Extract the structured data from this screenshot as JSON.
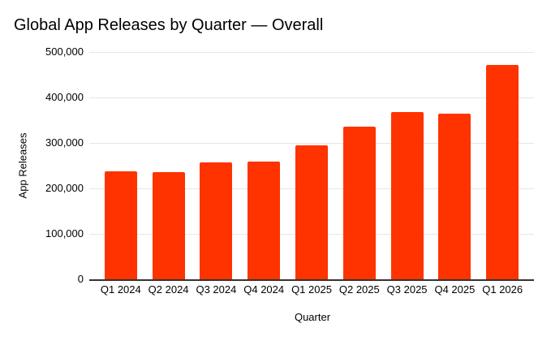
{
  "chart_data": {
    "type": "bar",
    "title": "Global App Releases by Quarter — Overall",
    "categories": [
      "Q1 2024",
      "Q2 2024",
      "Q3 2024",
      "Q4 2024",
      "Q1 2025",
      "Q2 2025",
      "Q3 2025",
      "Q4 2025",
      "Q1 2026"
    ],
    "values": [
      238000,
      236000,
      257000,
      259000,
      294000,
      336000,
      368000,
      364000,
      471000
    ],
    "xlabel": "Quarter",
    "ylabel": "App Releases",
    "ylim": [
      0,
      500000
    ],
    "ytick_values": [
      0,
      100000,
      200000,
      300000,
      400000,
      500000
    ],
    "ytick_labels": [
      "0",
      "100,000",
      "200,000",
      "300,000",
      "400,000",
      "500,000"
    ],
    "grid": true,
    "legend": "none",
    "bar_color": "#FF3300",
    "gridline_color": "#E6E6E6",
    "axis_line_color": "#333333",
    "text_color": "#000000",
    "background_color": "#FFFFFF"
  }
}
